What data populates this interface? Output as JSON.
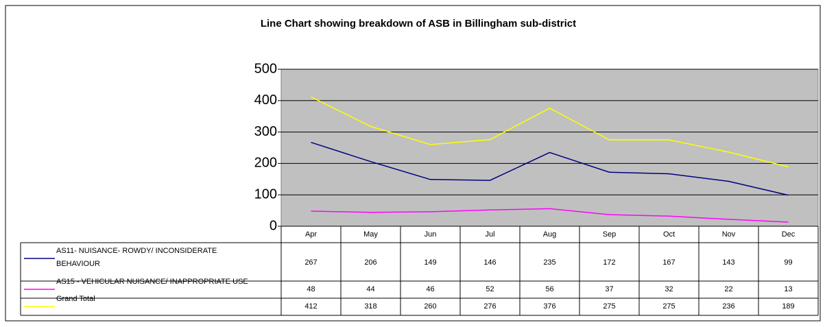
{
  "chart_data": {
    "type": "line",
    "title": "Line Chart showing breakdown of ASB in Billingham sub-district",
    "categories": [
      "Apr",
      "May",
      "Jun",
      "Jul",
      "Aug",
      "Sep",
      "Oct",
      "Nov",
      "Dec"
    ],
    "series": [
      {
        "name": "AS11- NUISANCE- ROWDY/ INCONSIDERATE BEHAVIOUR",
        "color": "#000080",
        "values": [
          267,
          206,
          149,
          146,
          235,
          172,
          167,
          143,
          99
        ]
      },
      {
        "name": "AS15 - VEHICULAR NUISANCE/ INAPPROPRIATE USE",
        "color": "#ff00ff",
        "values": [
          48,
          44,
          46,
          52,
          56,
          37,
          32,
          22,
          13
        ]
      },
      {
        "name": "Grand Total",
        "color": "#ffff00",
        "values": [
          412,
          318,
          260,
          276,
          376,
          275,
          275,
          236,
          189
        ]
      }
    ],
    "ylim": [
      0,
      500
    ],
    "yticks": [
      0,
      100,
      200,
      300,
      400,
      500
    ],
    "grid": true,
    "plot_background": "#c0c0c0"
  }
}
